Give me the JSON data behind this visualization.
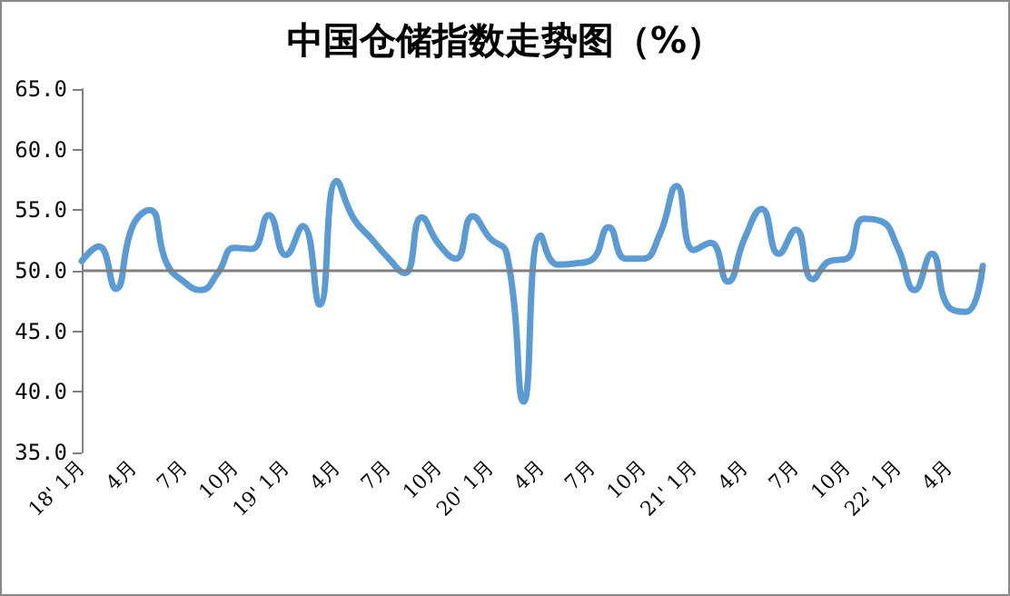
{
  "chart_data": {
    "type": "line",
    "title": "中国仓储指数走势图（%）",
    "categories": [
      "18' 1月",
      null,
      null,
      "4月",
      null,
      null,
      "7月",
      null,
      null,
      "10月",
      null,
      null,
      "19' 1月",
      null,
      null,
      "4月",
      null,
      null,
      "7月",
      null,
      null,
      "10月",
      null,
      null,
      "20' 1月",
      null,
      null,
      "4月",
      null,
      null,
      "7月",
      null,
      null,
      "10月",
      null,
      null,
      "21' 1月",
      null,
      null,
      "4月",
      null,
      null,
      "7月",
      null,
      null,
      "10月",
      null,
      null,
      "22' 1月",
      null,
      null,
      "4月",
      null,
      null
    ],
    "series": [
      {
        "color": "#5b9bd5",
        "values": [
          50.8,
          52.0,
          48.5,
          53.7,
          55.0,
          50.6,
          49.1,
          48.4,
          49.8,
          51.9,
          51.8,
          54.6,
          51.3,
          53.7,
          47.2,
          57.4,
          54.3,
          52.7,
          51.1,
          49.8,
          54.4,
          52.2,
          51.0,
          54.5,
          52.7,
          51.4,
          39.2,
          52.9,
          50.5,
          50.6,
          50.9,
          53.6,
          51.0,
          51.0,
          53.0,
          57.0,
          51.7,
          52.3,
          49.1,
          52.7,
          55.1,
          51.4,
          53.4,
          49.3,
          50.8,
          51.0,
          54.3,
          54.1,
          51.9,
          48.4,
          51.4,
          47.0,
          46.6,
          50.4
        ]
      }
    ],
    "ylim": [
      35,
      65
    ],
    "yticks": [
      {
        "value": 35,
        "label": "35.0"
      },
      {
        "value": 40,
        "label": "40.0"
      },
      {
        "value": 45,
        "label": "45.0"
      },
      {
        "value": 50,
        "label": "50.0"
      },
      {
        "value": 55,
        "label": "55.0"
      },
      {
        "value": 60,
        "label": "60.0"
      },
      {
        "value": 65,
        "label": "65.0"
      }
    ],
    "ref_lines": [
      {
        "axis": "y",
        "value": 50,
        "color": "#808080"
      }
    ],
    "grid": false,
    "marker": "none",
    "line_style": "solid"
  }
}
